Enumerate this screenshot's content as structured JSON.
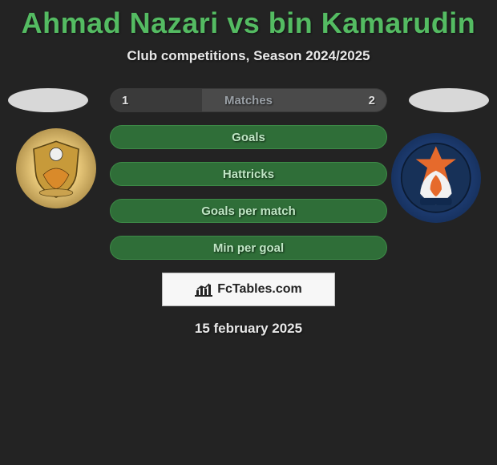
{
  "title": "Ahmad Nazari vs bin Kamarudin",
  "subtitle": "Club competitions, Season 2024/2025",
  "date": "15 february 2025",
  "brand": "FcTables.com",
  "colors": {
    "background": "#232323",
    "title": "#54bb62",
    "bar_green_fill": "#2f6e38",
    "bar_green_border": "#3d8a47",
    "bar_gray_fill": "#4a4a4a",
    "bar_gray_dark": "#3a3a3a",
    "brand_bg": "#f7f7f7"
  },
  "left_badge": {
    "name": "left-club",
    "bg": "#e8c87a"
  },
  "right_badge": {
    "name": "right-club",
    "bg": "#1c3a6e"
  },
  "bars": [
    {
      "key": "matches",
      "label": "Matches",
      "left": "1",
      "right": "2",
      "style": "gray",
      "left_fill_pct": 33
    },
    {
      "key": "goals",
      "label": "Goals",
      "left": "",
      "right": "",
      "style": "green",
      "left_fill_pct": 0
    },
    {
      "key": "hattricks",
      "label": "Hattricks",
      "left": "",
      "right": "",
      "style": "green",
      "left_fill_pct": 0
    },
    {
      "key": "gpm",
      "label": "Goals per match",
      "left": "",
      "right": "",
      "style": "green",
      "left_fill_pct": 0
    },
    {
      "key": "mpg",
      "label": "Min per goal",
      "left": "",
      "right": "",
      "style": "green",
      "left_fill_pct": 0
    }
  ]
}
